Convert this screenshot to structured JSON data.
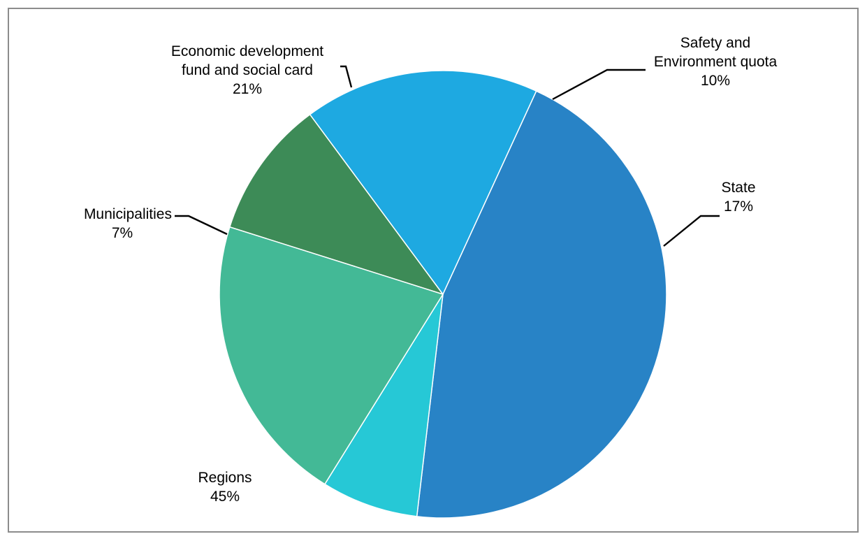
{
  "chart_data": {
    "type": "pie",
    "slices": [
      {
        "label": [
          "Safety and",
          "Environment quota"
        ],
        "pct_label": "10%",
        "value": 10,
        "color": "#3d8b57"
      },
      {
        "label": [
          "State"
        ],
        "pct_label": "17%",
        "value": 17,
        "color": "#1ea9e1"
      },
      {
        "label": [
          "Regions"
        ],
        "pct_label": "45%",
        "value": 45,
        "color": "#2883c6"
      },
      {
        "label": [
          "Municipalities"
        ],
        "pct_label": "7%",
        "value": 7,
        "color": "#26c8d6"
      },
      {
        "label": [
          "Economic development",
          "fund and social card"
        ],
        "pct_label": "21%",
        "value": 21,
        "color": "#43b996"
      }
    ]
  }
}
